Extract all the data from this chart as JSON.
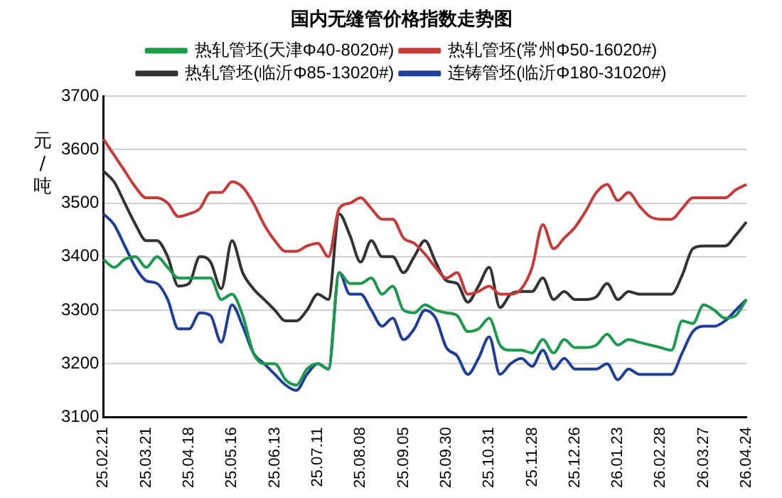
{
  "chart_data": {
    "type": "line",
    "title": "国内无缝管价格指数走势图",
    "ylabel": "元/吨",
    "categories": [
      "25.02.21",
      null,
      null,
      null,
      "25.03.21",
      null,
      null,
      null,
      "25.04.18",
      null,
      null,
      null,
      "25.05.16",
      null,
      null,
      null,
      "25.06.13",
      null,
      null,
      null,
      "25.07.11",
      null,
      null,
      null,
      "25.08.08",
      null,
      null,
      null,
      "25.09.05",
      null,
      null,
      null,
      "25.09.30",
      null,
      null,
      null,
      "25.10.31",
      null,
      null,
      null,
      "25.11.28",
      null,
      null,
      null,
      "25.12.26",
      null,
      null,
      null,
      "26.01.23",
      null,
      null,
      null,
      "26.02.28",
      null,
      null,
      null,
      "26.03.27",
      null,
      null,
      null,
      "26.04.24"
    ],
    "series": [
      {
        "name": "热轧管坯(天津Φ40-8020#)",
        "color": "#1a9a4a",
        "values": [
          3395,
          3380,
          3395,
          3400,
          3380,
          3400,
          3380,
          3360,
          3360,
          3360,
          3360,
          3320,
          3330,
          3290,
          3220,
          3200,
          3200,
          3170,
          3160,
          3190,
          3200,
          3190,
          3370,
          3350,
          3350,
          3360,
          3330,
          3345,
          3300,
          3295,
          3310,
          3300,
          3295,
          3290,
          3260,
          3265,
          3285,
          3235,
          3225,
          3225,
          3220,
          3245,
          3220,
          3245,
          3230,
          3230,
          3235,
          3255,
          3235,
          3245,
          3240,
          3235,
          3230,
          3225,
          3280,
          3275,
          3310,
          3300,
          3285,
          3290,
          3320
        ]
      },
      {
        "name": "热轧管坯(常州Φ50-16020#)",
        "color": "#c83a3a",
        "values": [
          3620,
          3590,
          3560,
          3530,
          3510,
          3510,
          3500,
          3475,
          3480,
          3490,
          3520,
          3520,
          3540,
          3530,
          3500,
          3460,
          3430,
          3410,
          3410,
          3420,
          3425,
          3400,
          3490,
          3500,
          3510,
          3490,
          3470,
          3470,
          3435,
          3425,
          3405,
          3380,
          3360,
          3370,
          3330,
          3335,
          3345,
          3330,
          3330,
          3340,
          3380,
          3460,
          3415,
          3435,
          3455,
          3485,
          3520,
          3535,
          3505,
          3520,
          3495,
          3475,
          3470,
          3470,
          3490,
          3510,
          3510,
          3510,
          3510,
          3525,
          3535
        ]
      },
      {
        "name": "热轧管坯(临沂Φ85-13020#)",
        "color": "#333333",
        "values": [
          3560,
          3540,
          3500,
          3460,
          3430,
          3430,
          3400,
          3345,
          3350,
          3400,
          3390,
          3340,
          3430,
          3370,
          3340,
          3320,
          3300,
          3280,
          3280,
          3300,
          3330,
          3320,
          3480,
          3440,
          3390,
          3430,
          3400,
          3400,
          3370,
          3400,
          3430,
          3390,
          3355,
          3350,
          3315,
          3345,
          3380,
          3305,
          3330,
          3335,
          3335,
          3360,
          3320,
          3335,
          3320,
          3320,
          3325,
          3350,
          3320,
          3335,
          3330,
          3330,
          3330,
          3330,
          3365,
          3415,
          3420,
          3420,
          3420,
          3440,
          3465
        ]
      },
      {
        "name": "连铸管坯(临沂Φ180-31020#)",
        "color": "#1f3f9a",
        "values": [
          3480,
          3460,
          3420,
          3380,
          3355,
          3350,
          3320,
          3265,
          3265,
          3295,
          3290,
          3240,
          3310,
          3270,
          3220,
          3200,
          3180,
          3160,
          3150,
          3180,
          3200,
          3190,
          3370,
          3330,
          3330,
          3300,
          3270,
          3285,
          3245,
          3265,
          3300,
          3285,
          3230,
          3215,
          3180,
          3210,
          3250,
          3180,
          3200,
          3210,
          3195,
          3225,
          3190,
          3210,
          3190,
          3190,
          3190,
          3200,
          3170,
          3190,
          3180,
          3180,
          3180,
          3180,
          3220,
          3260,
          3270,
          3270,
          3280,
          3300,
          3320
        ]
      }
    ],
    "ylim": [
      3100,
      3700
    ],
    "yticks": [
      3100,
      3200,
      3300,
      3400,
      3500,
      3600,
      3700
    ],
    "grid": "y",
    "legend": "top",
    "marker": "none",
    "line_style": "solid"
  }
}
